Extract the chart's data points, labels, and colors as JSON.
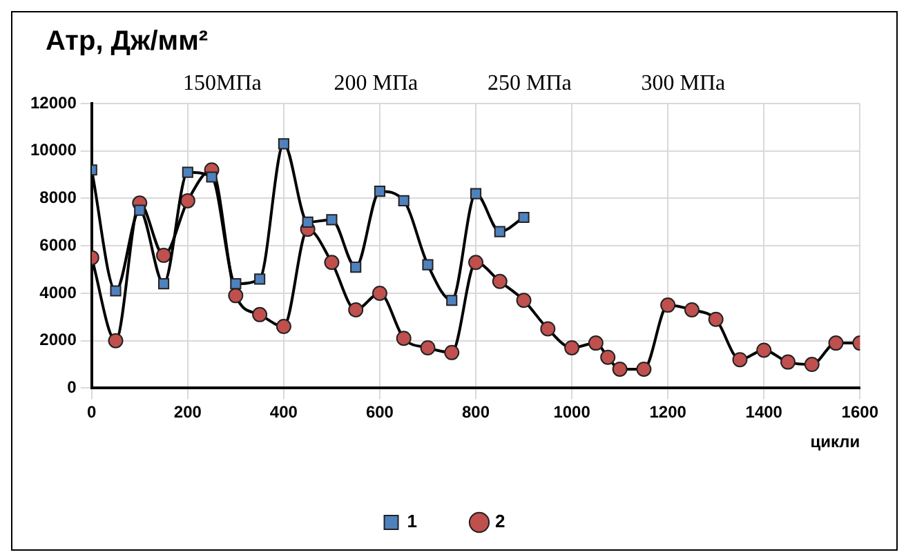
{
  "chart_data": {
    "type": "line",
    "ylabel": "Атр, Дж/мм²",
    "xlabel": "цикли",
    "annotations": [
      "150МПа",
      "200 МПа",
      "250 МПа",
      "300 МПа"
    ],
    "xlim": [
      0,
      1600
    ],
    "xticks": [
      0,
      200,
      400,
      600,
      800,
      1000,
      1200,
      1400,
      1600
    ],
    "ylim": [
      0,
      12000
    ],
    "yticks": [
      0,
      2000,
      4000,
      6000,
      8000,
      10000,
      12000
    ],
    "grid": true,
    "legend": "bottom",
    "line_style": "solid",
    "series": [
      {
        "name": "1",
        "color": "#4f81bd",
        "marker": "square",
        "x": [
          0,
          50,
          100,
          150,
          200,
          250,
          300,
          350,
          400,
          450,
          500,
          550,
          600,
          650,
          700,
          750,
          800,
          850,
          900
        ],
        "values": [
          9200,
          4100,
          7500,
          4400,
          9100,
          8900,
          4400,
          4600,
          10300,
          7000,
          7100,
          5100,
          8300,
          7900,
          5200,
          3700,
          8200,
          6600,
          7200
        ]
      },
      {
        "name": "2",
        "color": "#c0504d",
        "marker": "circle",
        "x": [
          0,
          50,
          100,
          150,
          200,
          250,
          300,
          350,
          400,
          450,
          500,
          550,
          600,
          650,
          700,
          750,
          800,
          850,
          900,
          950,
          1000,
          1050,
          1075,
          1100,
          1150,
          1200,
          1250,
          1300,
          1350,
          1400,
          1450,
          1500,
          1550,
          1600
        ],
        "values": [
          5500,
          2000,
          7800,
          5600,
          7900,
          9200,
          3900,
          3100,
          2600,
          6700,
          5300,
          3300,
          4000,
          2100,
          1700,
          1500,
          5300,
          4500,
          3700,
          2500,
          1700,
          1900,
          1300,
          800,
          800,
          3500,
          3300,
          2900,
          1200,
          1600,
          1100,
          1000,
          1900,
          1900
        ]
      }
    ]
  }
}
